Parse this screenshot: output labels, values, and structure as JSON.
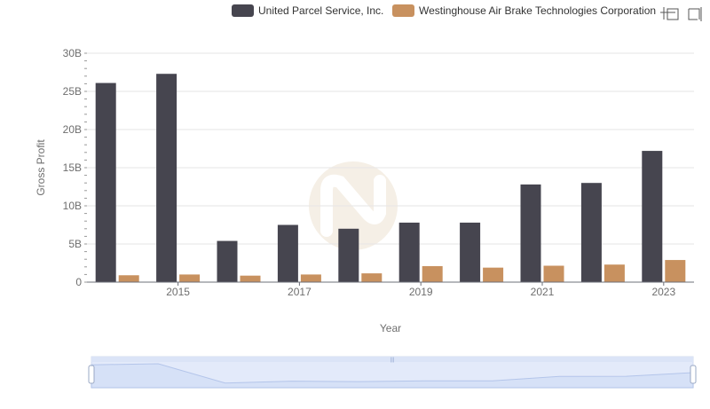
{
  "colors": {
    "series_1": "#46454f",
    "series_2": "#c8915f",
    "grid": "#e6e6e6",
    "watermark": "#f3ece2",
    "slider_fill": "#dde6f8",
    "slider_border": "#b8c8e8",
    "slider_line": "#9fb4e0"
  },
  "toolbox": {
    "zoom_icon": "zoom-icon",
    "restore_icon": "restore-icon"
  },
  "watermark_icon": "brand-logo-watermark",
  "chart_data": {
    "type": "bar",
    "title": "",
    "xlabel": "Year",
    "ylabel": "Gross Profit",
    "ylim": [
      0,
      30000000000
    ],
    "y_ticks": [
      0,
      5000000000,
      10000000000,
      15000000000,
      20000000000,
      25000000000,
      30000000000
    ],
    "y_tick_labels": [
      "0",
      "5B",
      "10B",
      "15B",
      "20B",
      "25B",
      "30B"
    ],
    "categories": [
      "2014",
      "2015",
      "2016",
      "2017",
      "2018",
      "2019",
      "2020",
      "2021",
      "2022",
      "2023"
    ],
    "x_tick_labels": [
      "",
      "2015",
      "",
      "2017",
      "",
      "2019",
      "",
      "2021",
      "",
      "2023"
    ],
    "grid": true,
    "legend_position": "top-right",
    "series": [
      {
        "name": "United Parcel Service, Inc.",
        "values": [
          26100000000,
          27300000000,
          5400000000,
          7500000000,
          7000000000,
          7800000000,
          7800000000,
          12800000000,
          13000000000,
          17200000000
        ]
      },
      {
        "name": "Westinghouse Air Brake Technologies Corporation",
        "values": [
          900000000,
          1000000000,
          850000000,
          1000000000,
          1150000000,
          2100000000,
          1900000000,
          2150000000,
          2300000000,
          2900000000
        ]
      }
    ]
  }
}
